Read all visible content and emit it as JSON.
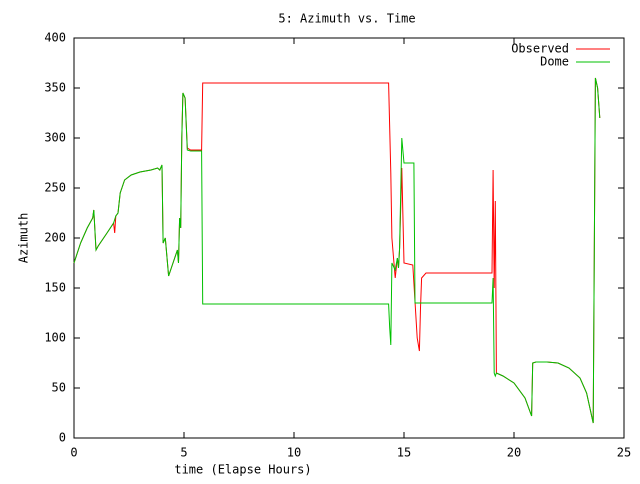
{
  "chart_data": {
    "type": "line",
    "title": "5: Azimuth vs. Time",
    "xlabel": "time (Elapse Hours)",
    "ylabel": "Azimuth",
    "xlim": [
      0,
      25
    ],
    "xticks": [
      0,
      5,
      10,
      15,
      20,
      25
    ],
    "ylim": [
      0,
      400
    ],
    "yticks": [
      0,
      50,
      100,
      150,
      200,
      250,
      300,
      350,
      400
    ],
    "legend": "upper right",
    "series": [
      {
        "name": "Observed",
        "color": "#ff0000",
        "x": [
          0,
          0.3,
          0.6,
          0.85,
          0.9,
          1.0,
          1.1,
          1.5,
          1.8,
          1.85,
          1.9,
          2.0,
          2.1,
          2.3,
          2.6,
          3.0,
          3.5,
          3.8,
          3.9,
          4.0,
          4.05,
          4.15,
          4.3,
          4.5,
          4.7,
          4.75,
          4.8,
          4.85,
          4.9,
          4.95,
          5.05,
          5.15,
          5.3,
          5.8,
          5.85,
          14.3,
          14.4,
          14.45,
          14.6,
          14.7,
          14.75,
          14.8,
          14.9,
          15.0,
          15.4,
          15.6,
          15.7,
          15.75,
          15.8,
          16.0,
          19.0,
          19.05,
          19.1,
          19.15,
          19.2,
          19.5,
          20.0,
          20.5,
          20.8,
          20.85,
          21.0,
          21.5,
          22.0,
          22.5,
          23.0,
          23.3,
          23.6,
          23.7,
          23.8,
          23.9
        ],
        "values": [
          175,
          195,
          210,
          220,
          228,
          188,
          192,
          205,
          215,
          205,
          222,
          225,
          245,
          258,
          263,
          266,
          268,
          270,
          268,
          273,
          195,
          200,
          162,
          175,
          188,
          175,
          220,
          210,
          300,
          345,
          340,
          290,
          288,
          288,
          355,
          355,
          265,
          200,
          160,
          180,
          170,
          190,
          270,
          175,
          173,
          100,
          87,
          130,
          160,
          165,
          165,
          268,
          150,
          237,
          65,
          62,
          55,
          40,
          22,
          75,
          76,
          76,
          75,
          70,
          60,
          45,
          15,
          360,
          350,
          320
        ]
      },
      {
        "name": "Dome",
        "color": "#00c000",
        "x": [
          0,
          0.3,
          0.6,
          0.85,
          0.9,
          1.0,
          1.1,
          1.5,
          1.8,
          1.9,
          2.0,
          2.1,
          2.3,
          2.6,
          3.0,
          3.5,
          3.8,
          3.9,
          4.0,
          4.05,
          4.15,
          4.3,
          4.5,
          4.7,
          4.75,
          4.8,
          4.85,
          4.9,
          4.95,
          5.05,
          5.15,
          5.3,
          5.8,
          5.85,
          14.3,
          14.35,
          14.4,
          14.45,
          14.6,
          14.7,
          14.75,
          14.8,
          14.9,
          15.0,
          15.45,
          15.5,
          19.0,
          19.05,
          19.1,
          19.15,
          19.2,
          19.5,
          20.0,
          20.5,
          20.8,
          20.85,
          21.0,
          21.5,
          22.0,
          22.5,
          23.0,
          23.3,
          23.6,
          23.7,
          23.8,
          23.9
        ],
        "values": [
          175,
          195,
          210,
          220,
          228,
          188,
          192,
          205,
          215,
          222,
          225,
          245,
          258,
          263,
          266,
          268,
          270,
          268,
          273,
          195,
          200,
          162,
          175,
          188,
          175,
          220,
          210,
          300,
          345,
          340,
          288,
          287,
          287,
          134,
          134,
          110,
          93,
          175,
          168,
          180,
          170,
          190,
          300,
          275,
          275,
          135,
          135,
          160,
          65,
          62,
          65,
          62,
          55,
          40,
          22,
          75,
          76,
          76,
          75,
          70,
          60,
          45,
          15,
          360,
          350,
          320
        ]
      }
    ]
  }
}
